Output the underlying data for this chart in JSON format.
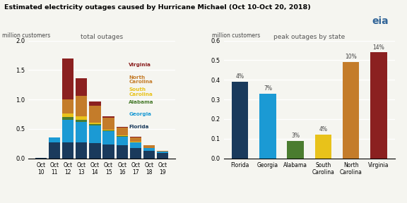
{
  "title": "Estimated electricity outages caused by Hurricane Michael (Oct 10-Oct 20, 2018)",
  "left_subtitle": "total outages",
  "right_subtitle": "peak outages by state",
  "ylabel_left": "million customers",
  "ylabel_right": "million customers",
  "stacked_categories": [
    "Oct\n10",
    "Oct\n11",
    "Oct\n12",
    "Oct\n13",
    "Oct\n14",
    "Oct\n15",
    "Oct\n16",
    "Oct\n17",
    "Oct\n18",
    "Oct\n19"
  ],
  "stacked_data": {
    "Florida": [
      0.01,
      0.27,
      0.27,
      0.27,
      0.26,
      0.24,
      0.22,
      0.18,
      0.13,
      0.09
    ],
    "Georgia": [
      0.0,
      0.08,
      0.38,
      0.35,
      0.3,
      0.22,
      0.15,
      0.09,
      0.05,
      0.03
    ],
    "Alabama": [
      0.0,
      0.0,
      0.05,
      0.04,
      0.02,
      0.01,
      0.01,
      0.0,
      0.0,
      0.0
    ],
    "South Carolina": [
      0.0,
      0.0,
      0.06,
      0.05,
      0.03,
      0.02,
      0.01,
      0.01,
      0.0,
      0.0
    ],
    "North Carolina": [
      0.0,
      0.0,
      0.24,
      0.35,
      0.28,
      0.2,
      0.13,
      0.08,
      0.04,
      0.01
    ],
    "Virginia": [
      0.0,
      0.0,
      0.7,
      0.3,
      0.07,
      0.03,
      0.01,
      0.01,
      0.0,
      0.0
    ]
  },
  "stacked_colors": {
    "Florida": "#1a3a5c",
    "Georgia": "#1b9ad4",
    "Alabama": "#4a7c2f",
    "South Carolina": "#e8c21a",
    "North Carolina": "#c47c2a",
    "Virginia": "#8b2020"
  },
  "legend_order": [
    "Virginia",
    "North Carolina",
    "South Carolina",
    "Alabama",
    "Georgia",
    "Florida"
  ],
  "legend_labels": {
    "Virginia": "Virginia",
    "North Carolina": "North\nCarolina",
    "South Carolina": "South\nCarolina",
    "Alabama": "Alabama",
    "Georgia": "Georgia",
    "Florida": "Florida"
  },
  "bar_categories": [
    "Florida",
    "Georgia",
    "Alabama",
    "South Carolina",
    "North Carolina",
    "Virginia"
  ],
  "bar_labels": [
    "Florida",
    "Georgia",
    "Alabama",
    "South\nCarolina",
    "North\nCarolina",
    "Virginia"
  ],
  "bar_values": [
    0.39,
    0.33,
    0.09,
    0.12,
    0.49,
    0.54
  ],
  "bar_colors": [
    "#1a3a5c",
    "#1b9ad4",
    "#4a7c2f",
    "#e8c21a",
    "#c47c2a",
    "#8b2020"
  ],
  "bar_pcts": [
    "4%",
    "7%",
    "3%",
    "4%",
    "10%",
    "14%"
  ],
  "left_ylim": [
    0,
    2.0
  ],
  "right_ylim": [
    0,
    0.6
  ],
  "background_color": "#f5f5f0"
}
